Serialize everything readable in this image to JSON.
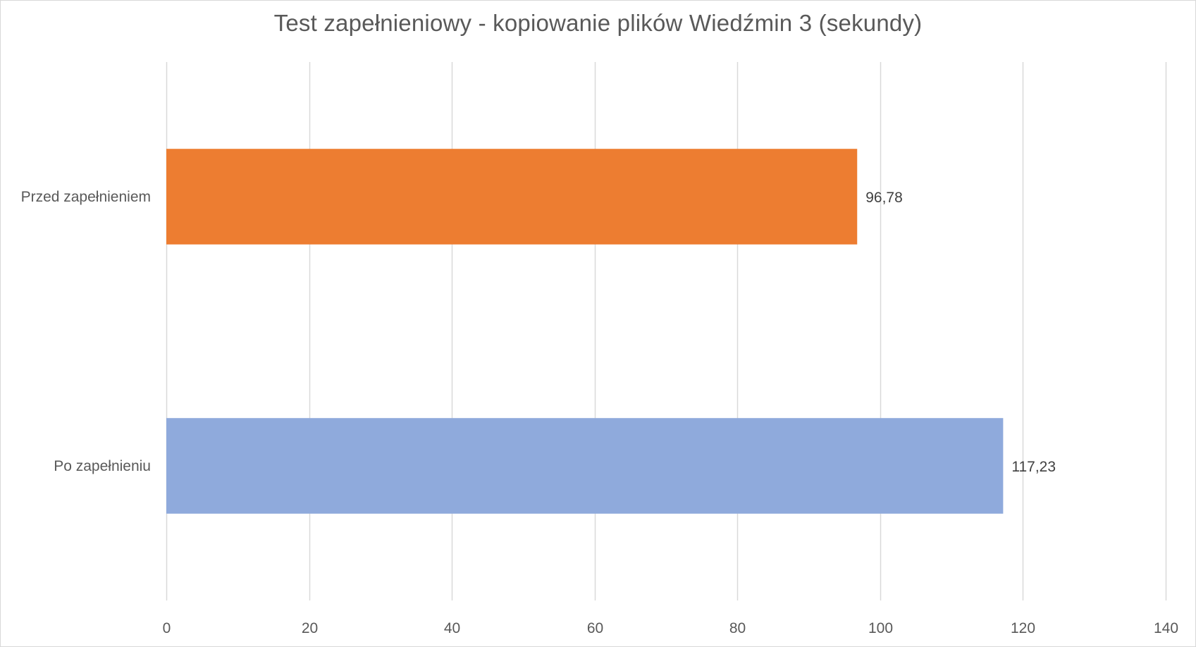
{
  "chart_data": {
    "type": "bar",
    "orientation": "horizontal",
    "title": "Test zapełnieniowy - kopiowanie plików Wiedźmin 3 (sekundy)",
    "xlabel": "",
    "ylabel": "",
    "categories": [
      "Przed zapełnieniem",
      "Po zapełnieniu"
    ],
    "values": [
      96.78,
      117.23
    ],
    "value_labels": [
      "96,78",
      "117,23"
    ],
    "bar_colors": [
      "#ed7d31",
      "#8faadc"
    ],
    "xlim": [
      0,
      140
    ],
    "xticks": [
      0,
      20,
      40,
      60,
      80,
      100,
      120,
      140
    ],
    "xtick_labels": [
      "0",
      "20",
      "40",
      "60",
      "80",
      "100",
      "120",
      "140"
    ],
    "grid": true,
    "grid_color": "#d9d9d9",
    "legend": "none"
  }
}
